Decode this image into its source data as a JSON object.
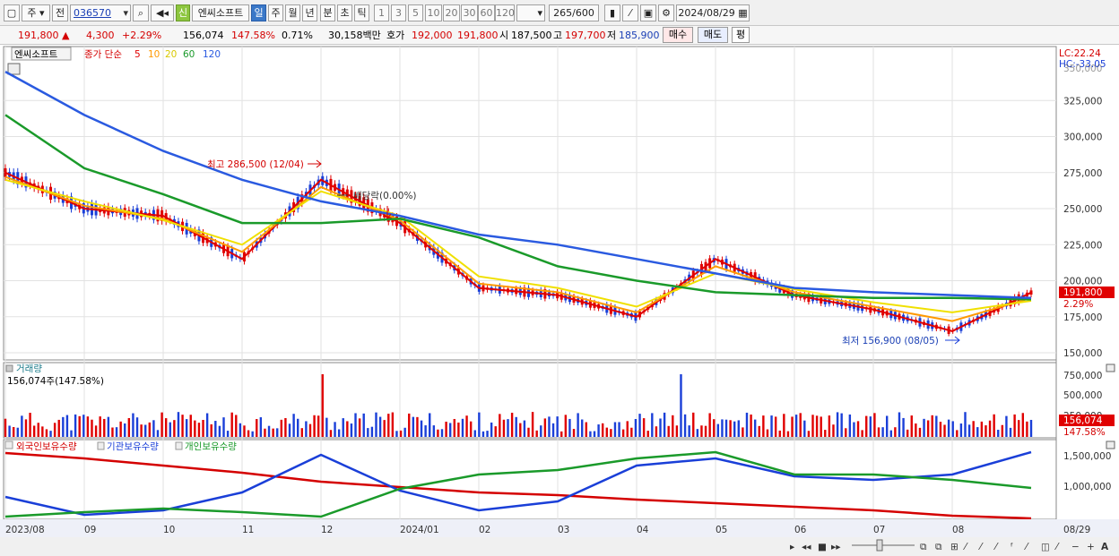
{
  "toolbar": {
    "period_label": "주",
    "prev_label": "전",
    "code_value": "036570",
    "badge_label": "신",
    "stock_name": "엔씨소프트",
    "periods": [
      "일",
      "주",
      "월",
      "년",
      "분",
      "초",
      "틱"
    ],
    "minutes": [
      "1",
      "3",
      "5",
      "10",
      "20",
      "30",
      "60",
      "120"
    ],
    "count": "265",
    "count_total": "/600",
    "date": "2024/08/29"
  },
  "quote": {
    "price": "191,800",
    "change_arrow": "▲",
    "change": "4,300",
    "change_pct": "+2.29%",
    "volume": "156,074",
    "volume_ratio": "147.58%",
    "turnover": "0.71%",
    "amount": "30,158백만",
    "hoga_label": "호가",
    "ask": "192,000",
    "bid": "191,800",
    "open_label": "시",
    "open": "187,500",
    "high_label": "고",
    "high": "197,700",
    "low_label": "저",
    "low": "185,900",
    "buy_label": "매수",
    "sell_label": "매도",
    "flat_label": "평"
  },
  "price_panel": {
    "name_tag": "엔씨소프트",
    "ma_title": "종가 단순",
    "ma_periods": [
      "5",
      "10",
      "20",
      "60",
      "120"
    ],
    "lc_label": "LC:22.24",
    "hc_label": "HC:-33.05",
    "y_ticks": [
      "325,000",
      "300,000",
      "275,000",
      "250,000",
      "225,000",
      "200,000",
      "175,000",
      "150,000"
    ],
    "y_cut": "350,000",
    "high_note": "최고 286,500 (12/04)",
    "dividend_note": "배당락(0.00%)",
    "low_note": "최저 156,900 (08/05)",
    "last_price_tag": "191,800",
    "last_pct_tag": "2.29%"
  },
  "volume_panel": {
    "title": "거래량",
    "summary": "156,074주(147.58%)",
    "y_ticks": [
      "750,000",
      "500,000",
      "250,000"
    ],
    "last_tag": "156,074",
    "last_pct": "147.58%"
  },
  "holding_panel": {
    "series": [
      "외국인보유수량",
      "기관보유수량",
      "개인보유수량"
    ],
    "y_ticks": [
      "1,500,000",
      "1,000,000"
    ]
  },
  "x_axis": {
    "labels": [
      "2023/08",
      "09",
      "10",
      "11",
      "12",
      "2024/01",
      "02",
      "03",
      "04",
      "05",
      "06",
      "07",
      "08"
    ],
    "last_label": "08/29"
  },
  "colors": {
    "up": "#e00000",
    "down": "#1a3fd8",
    "ma5": "#e00000",
    "ma10": "#ff9900",
    "ma20": "#f0e000",
    "ma60": "#1a9a2a",
    "ma120": "#2a5ae0"
  },
  "chart_data": {
    "type": "line",
    "title": "엔씨소프트",
    "x": [
      "2023/08",
      "09",
      "10",
      "11",
      "12",
      "2024/01",
      "02",
      "03",
      "04",
      "05",
      "06",
      "07",
      "08",
      "08/29"
    ],
    "series": [
      {
        "name": "5",
        "values": [
          275000,
          250000,
          245000,
          215000,
          270000,
          240000,
          195000,
          190000,
          175000,
          215000,
          190000,
          180000,
          165000,
          191800
        ]
      },
      {
        "name": "10",
        "values": [
          272000,
          252000,
          243000,
          220000,
          265000,
          242000,
          198000,
          192000,
          178000,
          210000,
          192000,
          182000,
          172000,
          188000
        ]
      },
      {
        "name": "20",
        "values": [
          270000,
          255000,
          242000,
          225000,
          262000,
          245000,
          203000,
          195000,
          182000,
          205000,
          194000,
          185000,
          178000,
          186000
        ]
      },
      {
        "name": "60",
        "values": [
          315000,
          278000,
          260000,
          240000,
          240000,
          243000,
          230000,
          210000,
          200000,
          192000,
          190000,
          188000,
          188000,
          187000
        ]
      },
      {
        "name": "120",
        "values": [
          345000,
          315000,
          290000,
          270000,
          255000,
          245000,
          232000,
          225000,
          215000,
          205000,
          195000,
          192000,
          190000,
          188000
        ]
      }
    ],
    "ylim": [
      150000,
      350000
    ]
  }
}
